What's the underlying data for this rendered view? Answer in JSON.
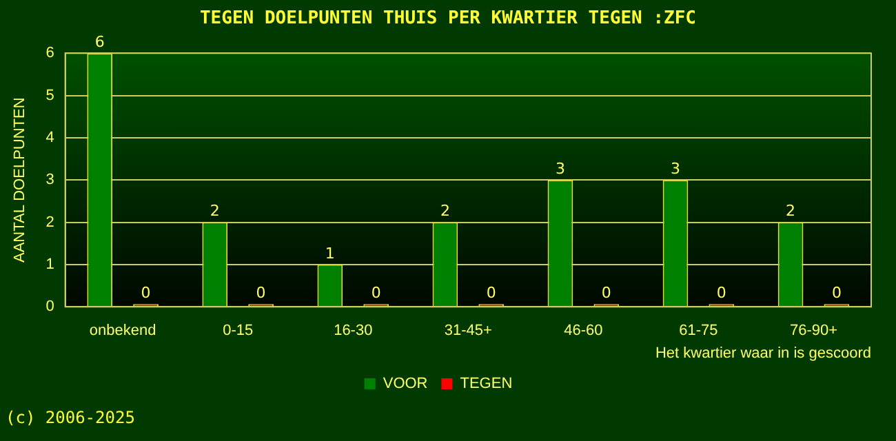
{
  "chart_data": {
    "type": "bar",
    "title": "TEGEN DOELPUNTEN THUIS PER KWARTIER TEGEN :ZFC",
    "ylabel": "AANTAL DOELPUNTEN",
    "xlabel": "Het kwartier waar in is gescoord",
    "categories": [
      "onbekend",
      "0-15",
      "16-30",
      "31-45+",
      "46-60",
      "61-75",
      "76-90+"
    ],
    "series": [
      {
        "name": "VOOR",
        "color": "#008000",
        "values": [
          6,
          2,
          1,
          2,
          3,
          3,
          2
        ]
      },
      {
        "name": "TEGEN",
        "color": "#ff0000",
        "values": [
          0,
          0,
          0,
          0,
          0,
          0,
          0
        ]
      }
    ],
    "ylim": [
      0,
      6
    ],
    "yticks": [
      0,
      1,
      2,
      3,
      4,
      5,
      6
    ],
    "grid": "y",
    "legend": "bottom",
    "data_labels": true,
    "annotations": [
      "(c) 2006-2025"
    ]
  }
}
